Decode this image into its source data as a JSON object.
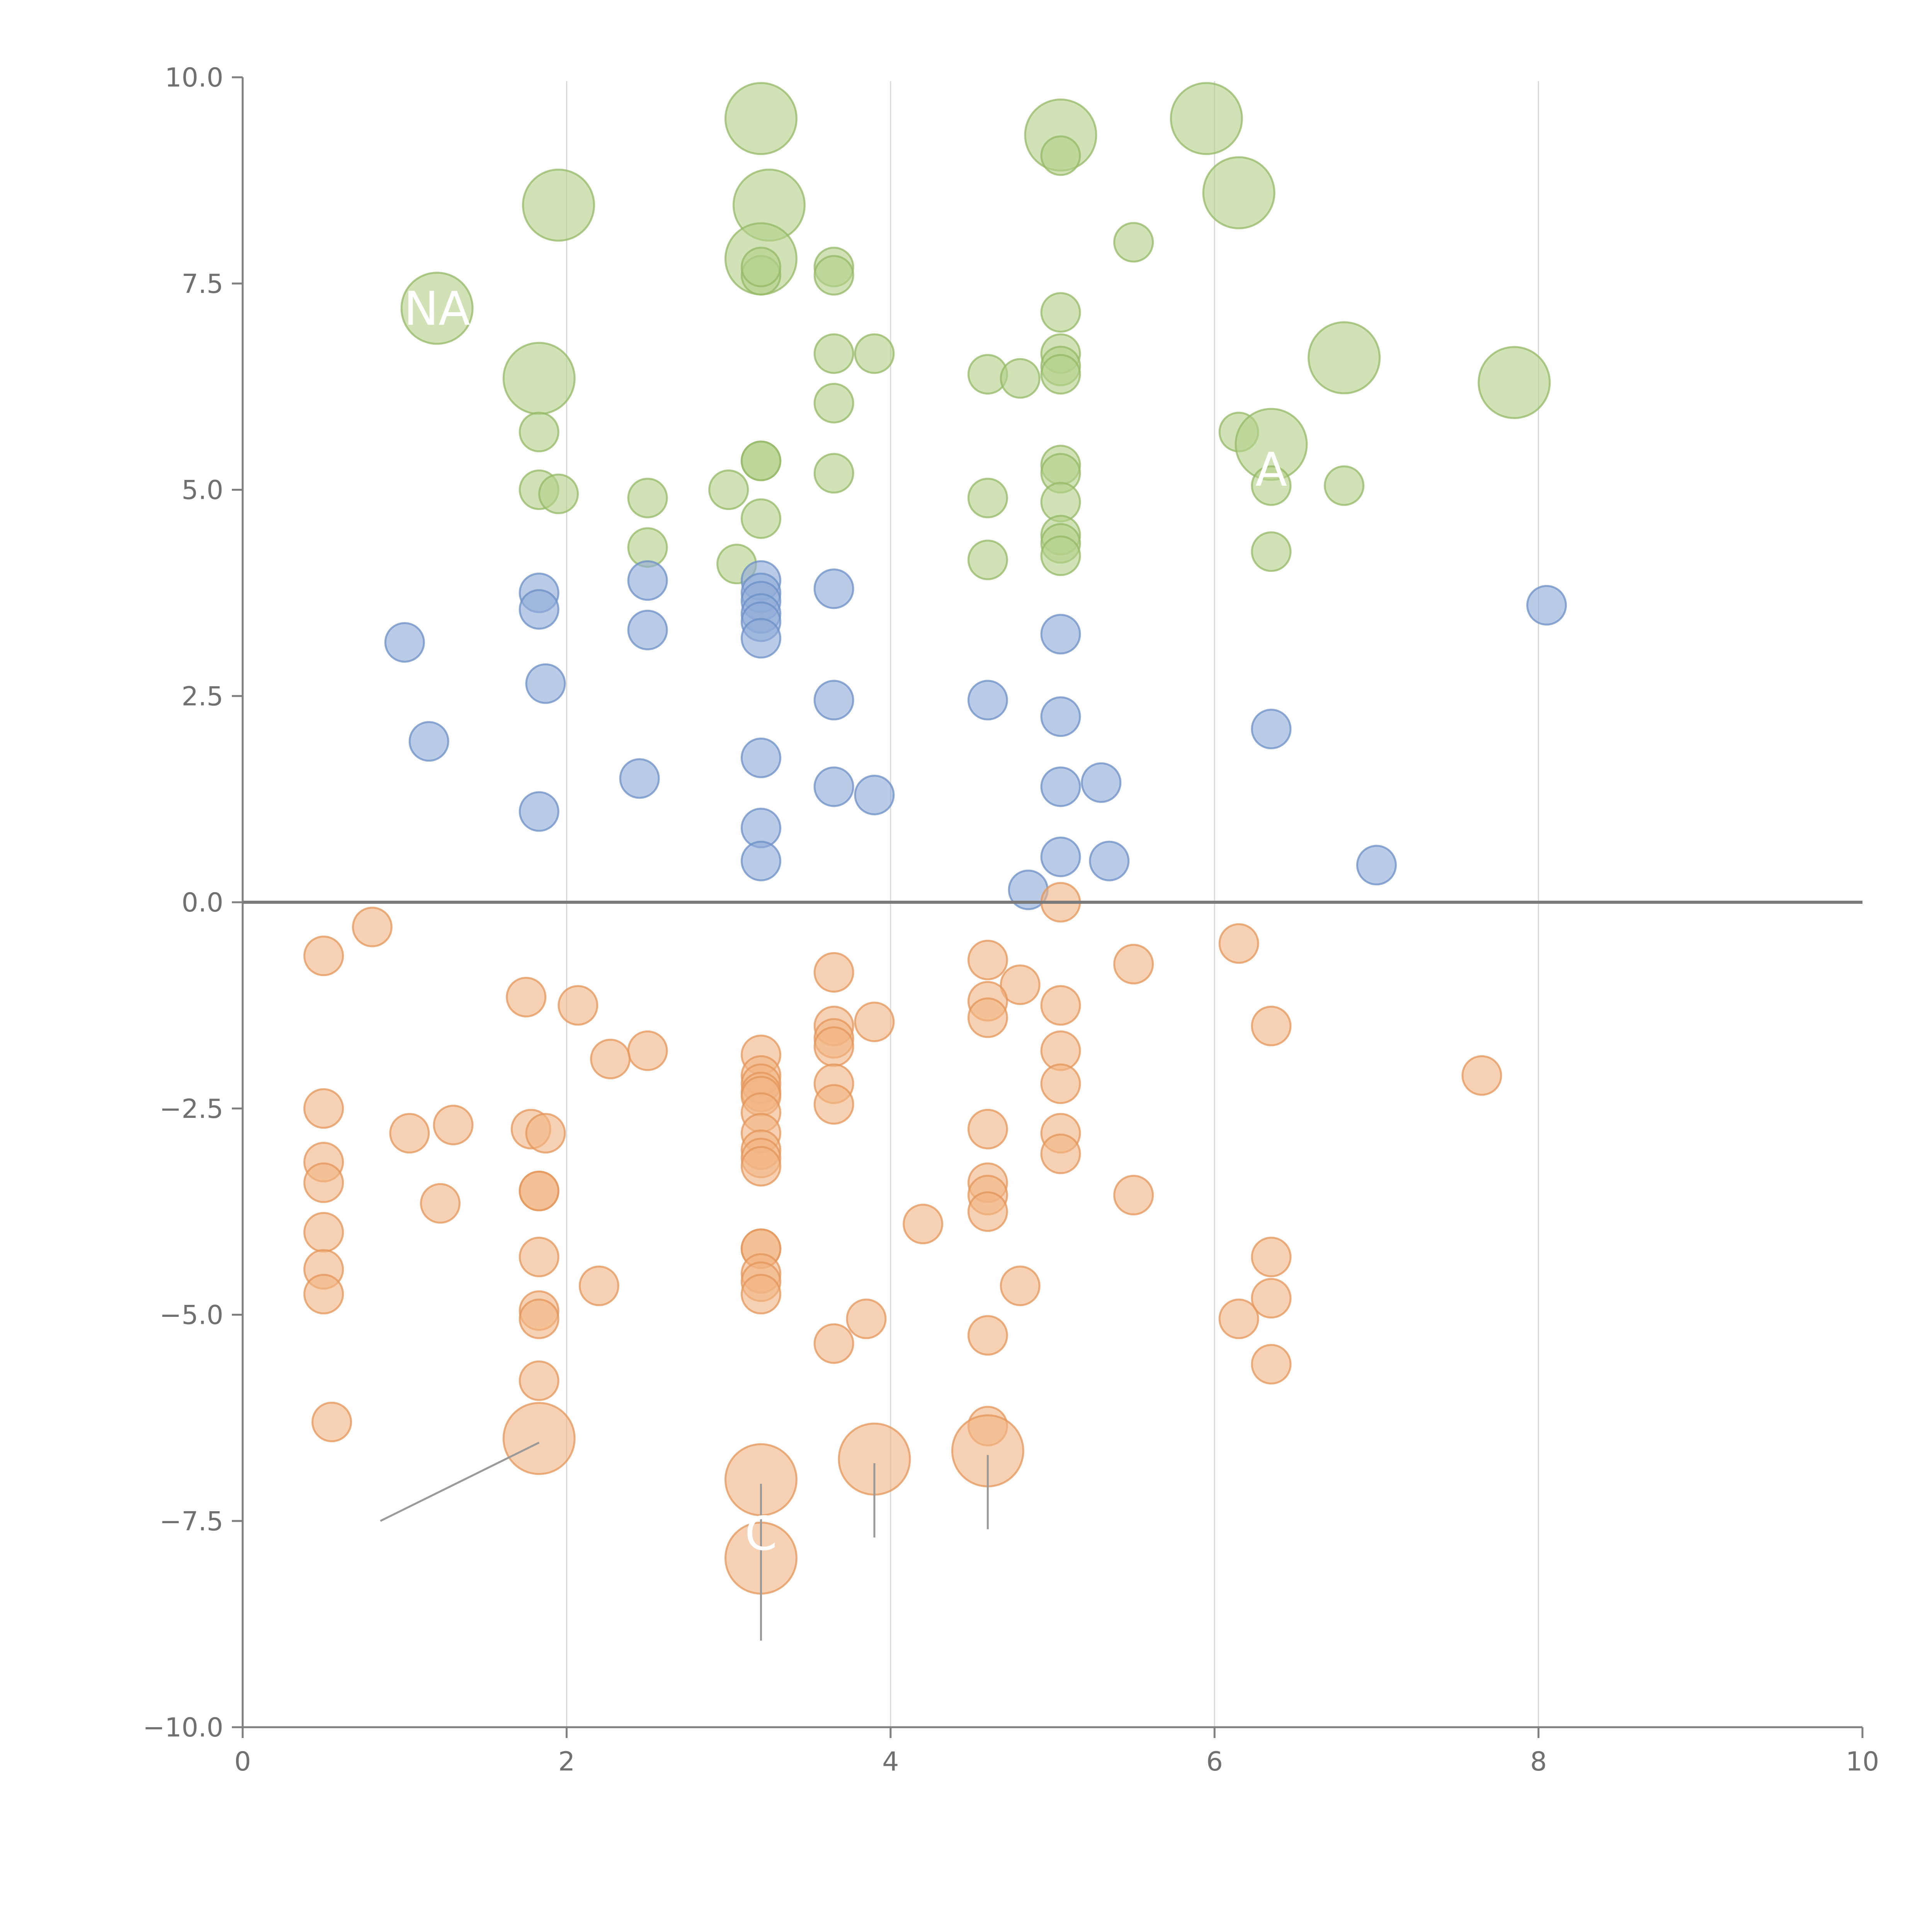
{
  "chart_data": {
    "type": "scatter",
    "title": "",
    "xlabel": "",
    "ylabel": "",
    "xlim": [
      0,
      10
    ],
    "ylim": [
      -10,
      10
    ],
    "x_ticks": [
      "0",
      "2",
      "4",
      "6",
      "8",
      "10"
    ],
    "y_ticks": [
      "10.0",
      "7.5",
      "5.0",
      "2.5",
      "0.0",
      "−2.5",
      "−5.0",
      "−7.5",
      "−10.0"
    ],
    "grid": "vertical lines at x = 2, 4, 6, 8",
    "legend": "none",
    "colors": {
      "green": "#b5d08a",
      "green_edge": "#94b865",
      "blue": "#8fabd8",
      "blue_edge": "#6b8fc6",
      "orange": "#f2b484",
      "orange_edge": "#e39559"
    },
    "series": [
      {
        "color": "green",
        "points": [
          [
            3.2,
            9.5,
            2
          ],
          [
            1.95,
            8.45,
            2
          ],
          [
            3.25,
            8.45,
            2
          ],
          [
            5.05,
            9.3,
            2
          ],
          [
            5.05,
            9.05,
            1
          ],
          [
            5.95,
            9.5,
            2
          ],
          [
            6.15,
            8.6,
            2
          ],
          [
            5.5,
            8.0,
            1
          ],
          [
            1.2,
            7.2,
            2
          ],
          [
            3.2,
            7.8,
            2
          ],
          [
            3.2,
            7.6,
            1
          ],
          [
            3.2,
            7.7,
            1
          ],
          [
            3.65,
            7.7,
            1
          ],
          [
            3.65,
            7.6,
            1
          ],
          [
            5.05,
            7.15,
            1
          ],
          [
            1.83,
            6.35,
            2
          ],
          [
            3.65,
            6.65,
            1
          ],
          [
            3.9,
            6.65,
            1
          ],
          [
            3.65,
            6.05,
            1
          ],
          [
            4.6,
            6.4,
            1
          ],
          [
            4.8,
            6.35,
            1
          ],
          [
            5.05,
            6.65,
            1
          ],
          [
            5.05,
            6.5,
            1
          ],
          [
            5.05,
            6.4,
            1
          ],
          [
            6.8,
            6.6,
            2
          ],
          [
            7.85,
            6.3,
            2
          ],
          [
            6.15,
            5.7,
            1
          ],
          [
            6.35,
            5.55,
            2
          ],
          [
            1.83,
            5.7,
            1
          ],
          [
            3.2,
            5.35,
            1
          ],
          [
            3.2,
            5.35,
            1
          ],
          [
            3.65,
            5.2,
            1
          ],
          [
            5.05,
            5.3,
            1
          ],
          [
            5.05,
            5.2,
            1
          ],
          [
            1.83,
            5.0,
            1
          ],
          [
            1.95,
            4.95,
            1
          ],
          [
            2.5,
            4.9,
            1
          ],
          [
            3.0,
            5.0,
            1
          ],
          [
            4.6,
            4.9,
            1
          ],
          [
            5.05,
            4.85,
            1
          ],
          [
            6.35,
            5.05,
            1
          ],
          [
            6.8,
            5.05,
            1
          ],
          [
            3.2,
            4.65,
            1
          ],
          [
            5.05,
            4.45,
            1
          ],
          [
            5.05,
            4.35,
            1
          ],
          [
            2.5,
            4.3,
            1
          ],
          [
            5.05,
            4.2,
            1
          ],
          [
            6.35,
            4.25,
            1
          ],
          [
            3.05,
            4.1,
            1
          ],
          [
            4.6,
            4.15,
            1
          ]
        ]
      },
      {
        "color": "blue",
        "points": [
          [
            3.2,
            3.9,
            1
          ],
          [
            3.2,
            3.75,
            1
          ],
          [
            3.2,
            3.65,
            1
          ],
          [
            3.2,
            3.5,
            1
          ],
          [
            3.2,
            3.4,
            1
          ],
          [
            3.2,
            3.2,
            1
          ],
          [
            3.65,
            3.8,
            1
          ],
          [
            2.5,
            3.9,
            1
          ],
          [
            1.83,
            3.75,
            1
          ],
          [
            1.83,
            3.55,
            1
          ],
          [
            2.5,
            3.3,
            1
          ],
          [
            1.0,
            3.15,
            1
          ],
          [
            5.05,
            3.25,
            1
          ],
          [
            8.05,
            3.6,
            1
          ],
          [
            1.87,
            2.65,
            1
          ],
          [
            3.65,
            2.45,
            1
          ],
          [
            4.6,
            2.45,
            1
          ],
          [
            5.05,
            2.25,
            1
          ],
          [
            6.35,
            2.1,
            1
          ],
          [
            1.15,
            1.95,
            1
          ],
          [
            3.2,
            1.75,
            1
          ],
          [
            2.45,
            1.5,
            1
          ],
          [
            3.65,
            1.4,
            1
          ],
          [
            3.9,
            1.3,
            1
          ],
          [
            5.05,
            1.4,
            1
          ],
          [
            5.3,
            1.45,
            1
          ],
          [
            1.83,
            1.1,
            1
          ],
          [
            3.2,
            0.9,
            1
          ],
          [
            3.2,
            0.5,
            1
          ],
          [
            5.05,
            0.55,
            1
          ],
          [
            5.35,
            0.5,
            1
          ],
          [
            7.0,
            0.45,
            1
          ],
          [
            4.85,
            0.15,
            1
          ]
        ]
      },
      {
        "color": "orange",
        "points": [
          [
            5.05,
            0.0,
            1
          ],
          [
            0.8,
            -0.3,
            1
          ],
          [
            0.5,
            -0.65,
            1
          ],
          [
            6.15,
            -0.5,
            1
          ],
          [
            4.6,
            -0.7,
            1
          ],
          [
            5.5,
            -0.75,
            1
          ],
          [
            3.65,
            -0.85,
            1
          ],
          [
            4.8,
            -1.0,
            1
          ],
          [
            1.75,
            -1.15,
            1
          ],
          [
            2.07,
            -1.25,
            1
          ],
          [
            4.6,
            -1.2,
            1
          ],
          [
            5.05,
            -1.25,
            1
          ],
          [
            4.6,
            -1.4,
            1
          ],
          [
            3.65,
            -1.5,
            1
          ],
          [
            3.9,
            -1.45,
            1
          ],
          [
            6.35,
            -1.5,
            1
          ],
          [
            3.65,
            -1.65,
            1
          ],
          [
            3.65,
            -1.75,
            1
          ],
          [
            2.5,
            -1.8,
            1
          ],
          [
            2.27,
            -1.9,
            1
          ],
          [
            3.2,
            -1.85,
            1
          ],
          [
            5.05,
            -1.8,
            1
          ],
          [
            3.2,
            -2.1,
            1
          ],
          [
            3.2,
            -2.2,
            1
          ],
          [
            3.2,
            -2.3,
            1
          ],
          [
            3.65,
            -2.2,
            1
          ],
          [
            5.05,
            -2.2,
            1
          ],
          [
            7.65,
            -2.1,
            1
          ],
          [
            3.2,
            -2.35,
            1
          ],
          [
            3.65,
            -2.45,
            1
          ],
          [
            0.5,
            -2.5,
            1
          ],
          [
            3.2,
            -2.55,
            1
          ],
          [
            1.3,
            -2.7,
            1
          ],
          [
            1.78,
            -2.75,
            1
          ],
          [
            1.87,
            -2.8,
            1
          ],
          [
            1.03,
            -2.8,
            1
          ],
          [
            3.2,
            -2.8,
            1
          ],
          [
            4.6,
            -2.75,
            1
          ],
          [
            5.05,
            -2.8,
            1
          ],
          [
            3.2,
            -3.0,
            1
          ],
          [
            3.2,
            -3.1,
            1
          ],
          [
            5.05,
            -3.05,
            1
          ],
          [
            0.5,
            -3.15,
            1
          ],
          [
            3.2,
            -3.2,
            1
          ],
          [
            0.5,
            -3.4,
            1
          ],
          [
            4.6,
            -3.4,
            1
          ],
          [
            1.83,
            -3.5,
            1
          ],
          [
            1.83,
            -3.5,
            1
          ],
          [
            5.5,
            -3.55,
            1
          ],
          [
            4.6,
            -3.55,
            1
          ],
          [
            1.22,
            -3.65,
            1
          ],
          [
            4.6,
            -3.75,
            1
          ],
          [
            4.2,
            -3.9,
            1
          ],
          [
            0.5,
            -4.0,
            1
          ],
          [
            3.2,
            -4.2,
            1
          ],
          [
            3.2,
            -4.2,
            1
          ],
          [
            1.83,
            -4.3,
            1
          ],
          [
            6.35,
            -4.3,
            1
          ],
          [
            0.5,
            -4.45,
            1
          ],
          [
            3.2,
            -4.5,
            1
          ],
          [
            3.2,
            -4.6,
            1
          ],
          [
            2.2,
            -4.65,
            1
          ],
          [
            4.8,
            -4.65,
            1
          ],
          [
            3.2,
            -4.75,
            1
          ],
          [
            0.5,
            -4.75,
            1
          ],
          [
            6.35,
            -4.8,
            1
          ],
          [
            1.83,
            -4.95,
            1
          ],
          [
            1.83,
            -5.05,
            1
          ],
          [
            3.85,
            -5.05,
            1
          ],
          [
            6.15,
            -5.05,
            1
          ],
          [
            4.6,
            -5.25,
            1
          ],
          [
            3.65,
            -5.35,
            1
          ],
          [
            6.35,
            -5.6,
            1
          ],
          [
            1.83,
            -5.8,
            1
          ],
          [
            0.55,
            -6.3,
            1
          ],
          [
            4.6,
            -6.35,
            1
          ],
          [
            1.83,
            -6.5,
            2
          ],
          [
            4.6,
            -6.65,
            2
          ],
          [
            3.9,
            -6.75,
            2
          ],
          [
            3.2,
            -7.0,
            2
          ],
          [
            3.2,
            -7.95,
            2
          ]
        ]
      }
    ],
    "label_leaders": [
      [
        [
          1.83,
          -6.55
        ],
        [
          0.85,
          -7.5
        ]
      ],
      [
        [
          3.2,
          -7.05
        ],
        [
          3.2,
          -8.0
        ]
      ],
      [
        [
          3.2,
          -8.0
        ],
        [
          3.2,
          -8.95
        ]
      ],
      [
        [
          3.9,
          -6.8
        ],
        [
          3.9,
          -7.7
        ]
      ],
      [
        [
          4.6,
          -6.7
        ],
        [
          4.6,
          -7.6
        ]
      ]
    ],
    "visible_labels": [
      {
        "text": "NA",
        "x": 1.2,
        "y": 7.0
      },
      {
        "text": "A",
        "x": 6.35,
        "y": 5.05
      },
      {
        "text": "C",
        "x": 3.2,
        "y": -7.85
      }
    ]
  }
}
